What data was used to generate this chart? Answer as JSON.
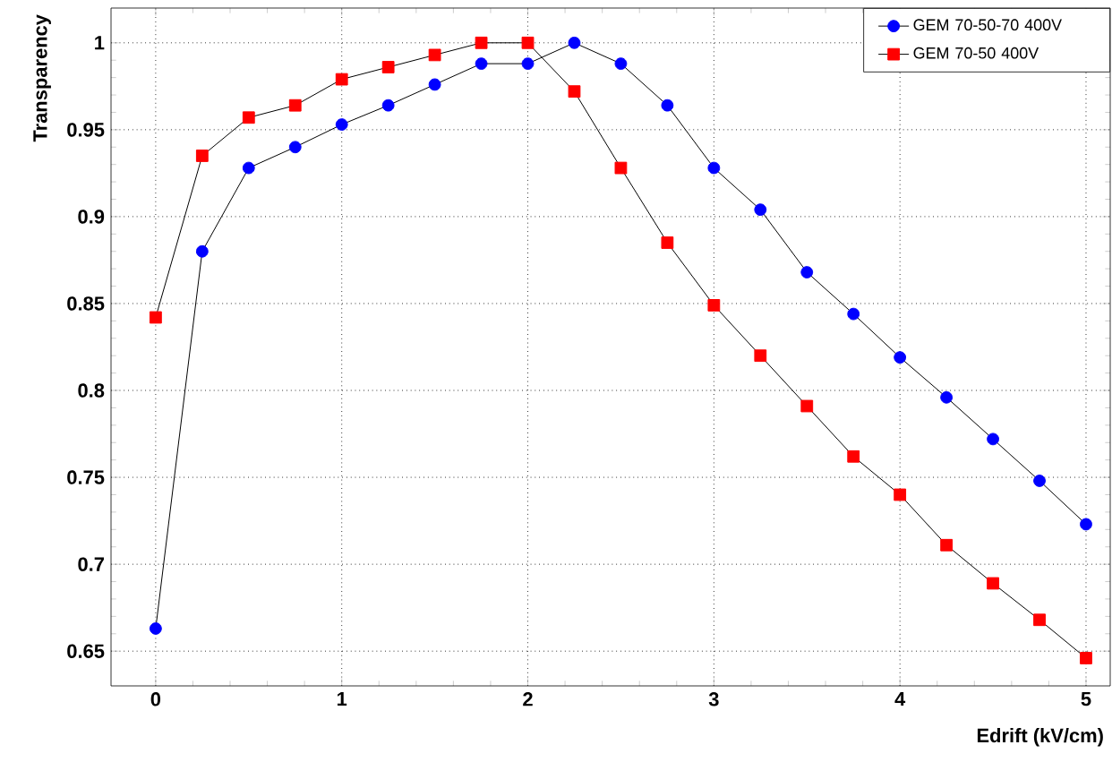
{
  "chart_data": {
    "type": "line",
    "xlabel": "Edrift (kV/cm)",
    "ylabel": "Transparency",
    "x": [
      0,
      0.25,
      0.5,
      0.75,
      1,
      1.25,
      1.5,
      1.75,
      2,
      2.25,
      2.5,
      2.75,
      3,
      3.25,
      3.5,
      3.75,
      4,
      4.25,
      4.5,
      4.75,
      5
    ],
    "series": [
      {
        "name": "GEM 70-50-70 400V",
        "color": "#0000ff",
        "marker": "circle",
        "values": [
          0.663,
          0.88,
          0.928,
          0.94,
          0.953,
          0.964,
          0.976,
          0.988,
          0.988,
          1.0,
          0.988,
          0.964,
          0.928,
          0.904,
          0.868,
          0.844,
          0.819,
          0.796,
          0.772,
          0.748,
          0.723
        ]
      },
      {
        "name": "GEM 70-50 400V",
        "color": "#ff0000",
        "marker": "square",
        "values": [
          0.842,
          0.935,
          0.957,
          0.964,
          0.979,
          0.986,
          0.993,
          1.0,
          1.0,
          0.972,
          0.928,
          0.885,
          0.849,
          0.82,
          0.791,
          0.762,
          0.74,
          0.711,
          0.689,
          0.668,
          0.646
        ]
      }
    ],
    "xlim": [
      -0.24,
      5.13
    ],
    "ylim": [
      0.63,
      1.02
    ],
    "xticks": [
      0,
      1,
      2,
      3,
      4,
      5
    ],
    "yticks": [
      0.65,
      0.7,
      0.75,
      0.8,
      0.85,
      0.9,
      0.95,
      1
    ],
    "grid": true,
    "legend": "top right",
    "line_style": "solid"
  }
}
